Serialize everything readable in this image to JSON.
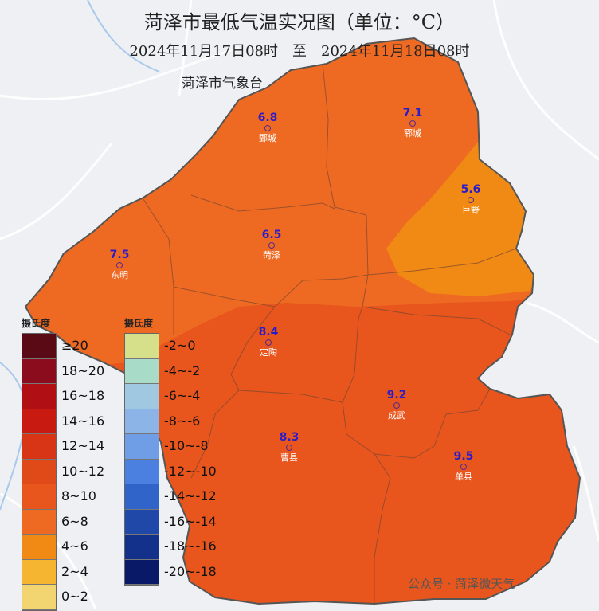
{
  "title": "菏泽市最低气温实况图（单位：°C）",
  "subtitle": "2024年11月17日08时　至　2024年11月18日08时",
  "source": "菏泽市气象台",
  "legend_warm": {
    "title": "摄氏度",
    "items": [
      {
        "label": "≥20",
        "color": "#5a0a14"
      },
      {
        "label": "18~20",
        "color": "#8b0c1c"
      },
      {
        "label": "16~18",
        "color": "#b00f14"
      },
      {
        "label": "14~16",
        "color": "#c81a10"
      },
      {
        "label": "12~14",
        "color": "#d83416"
      },
      {
        "label": "10~12",
        "color": "#e04a18"
      },
      {
        "label": "8~10",
        "color": "#e8561e"
      },
      {
        "label": "6~8",
        "color": "#ee6a22"
      },
      {
        "label": "4~6",
        "color": "#f08a14"
      },
      {
        "label": "2~4",
        "color": "#f5b530"
      },
      {
        "label": "0~2",
        "color": "#f2d570"
      }
    ]
  },
  "legend_cold": {
    "title": "摄氏度",
    "items": [
      {
        "label": "-2~0",
        "color": "#d6e08a"
      },
      {
        "label": "-4~-2",
        "color": "#a8dcc8"
      },
      {
        "label": "-6~-4",
        "color": "#a0c8e0"
      },
      {
        "label": "-8~-6",
        "color": "#8cb4e6"
      },
      {
        "label": "-10~-8",
        "color": "#6f9ee6"
      },
      {
        "label": "-12~-10",
        "color": "#4c80e0"
      },
      {
        "label": "-14~-12",
        "color": "#3064c8"
      },
      {
        "label": "-16~-14",
        "color": "#2048a8"
      },
      {
        "label": "-18~-16",
        "color": "#13308a"
      },
      {
        "label": "-20~-18",
        "color": "#0a1868"
      }
    ]
  },
  "stations": [
    {
      "name": "鄄城",
      "value": "6.8"
    },
    {
      "name": "郓城",
      "value": "7.1"
    },
    {
      "name": "巨野",
      "value": "5.6"
    },
    {
      "name": "东明",
      "value": "7.5"
    },
    {
      "name": "菏泽",
      "value": "6.5"
    },
    {
      "name": "定陶",
      "value": "8.4"
    },
    {
      "name": "成武",
      "value": "9.2"
    },
    {
      "name": "曹县",
      "value": "8.3"
    },
    {
      "name": "单县",
      "value": "9.5"
    }
  ],
  "watermark": "公众号 · 菏泽微天气"
}
